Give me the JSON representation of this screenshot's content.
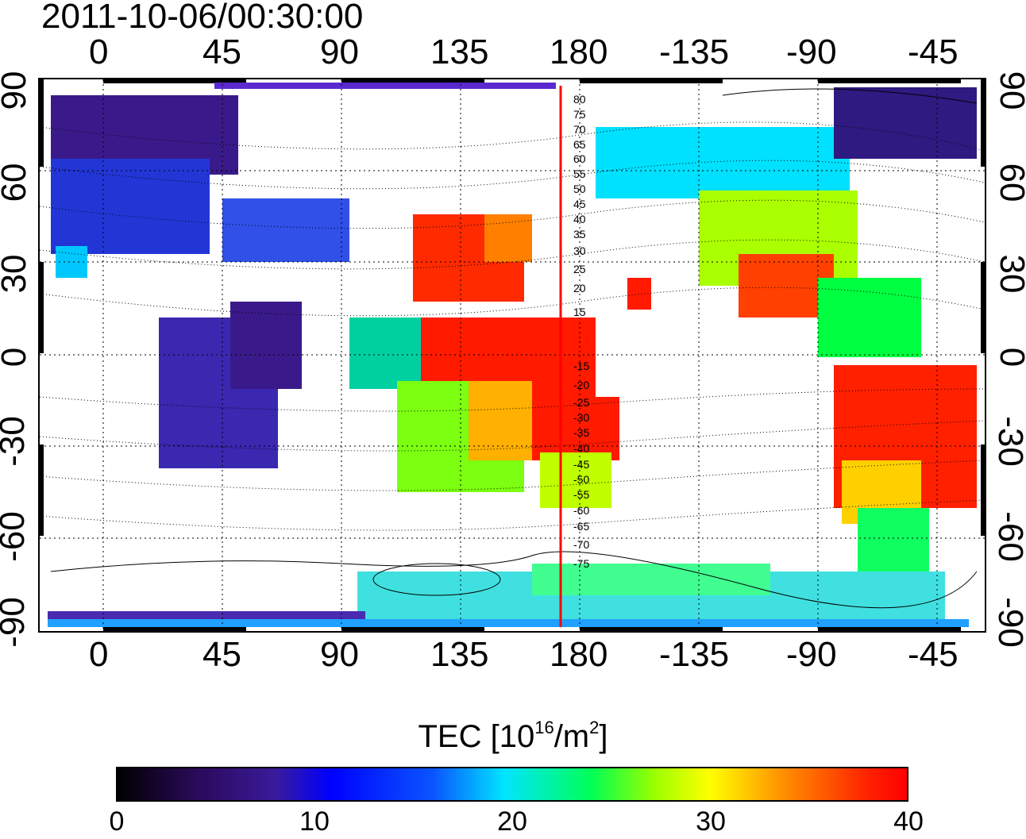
{
  "title": "2011-10-06/00:30:00",
  "x_ticks_top": [
    "0",
    "45",
    "90",
    "135",
    "180",
    "-135",
    "-90",
    "-45"
  ],
  "x_ticks_bottom": [
    "0",
    "45",
    "90",
    "135",
    "180",
    "-135",
    "-90",
    "-45"
  ],
  "y_ticks_left": [
    "90",
    "60",
    "30",
    "0",
    "-30",
    "-60",
    "-90"
  ],
  "y_ticks_right": [
    "90",
    "60",
    "30",
    "0",
    "-30",
    "-60",
    "-90"
  ],
  "colorbar": {
    "label_prefix": "TEC  [10",
    "label_exp1": "16",
    "label_mid": "/m",
    "label_exp2": "2",
    "label_suffix": "]",
    "ticks": [
      "0",
      "10",
      "20",
      "30",
      "40"
    ],
    "range": [
      0,
      40
    ]
  },
  "magnetic_latitude_labels": [
    "80",
    "75",
    "70",
    "65",
    "60",
    "55",
    "50",
    "45",
    "40",
    "35",
    "30",
    "25",
    "20",
    "15",
    "-15",
    "-20",
    "-25",
    "-30",
    "-35",
    "-40",
    "-45",
    "-50",
    "-55",
    "-60",
    "-65",
    "-70",
    "-75"
  ],
  "marker_line_color": "#ff0000",
  "colormap": [
    "#000000",
    "#3a1a9a",
    "#0000ff",
    "#00e5ff",
    "#00ff55",
    "#ffff00",
    "#ff0000"
  ]
}
